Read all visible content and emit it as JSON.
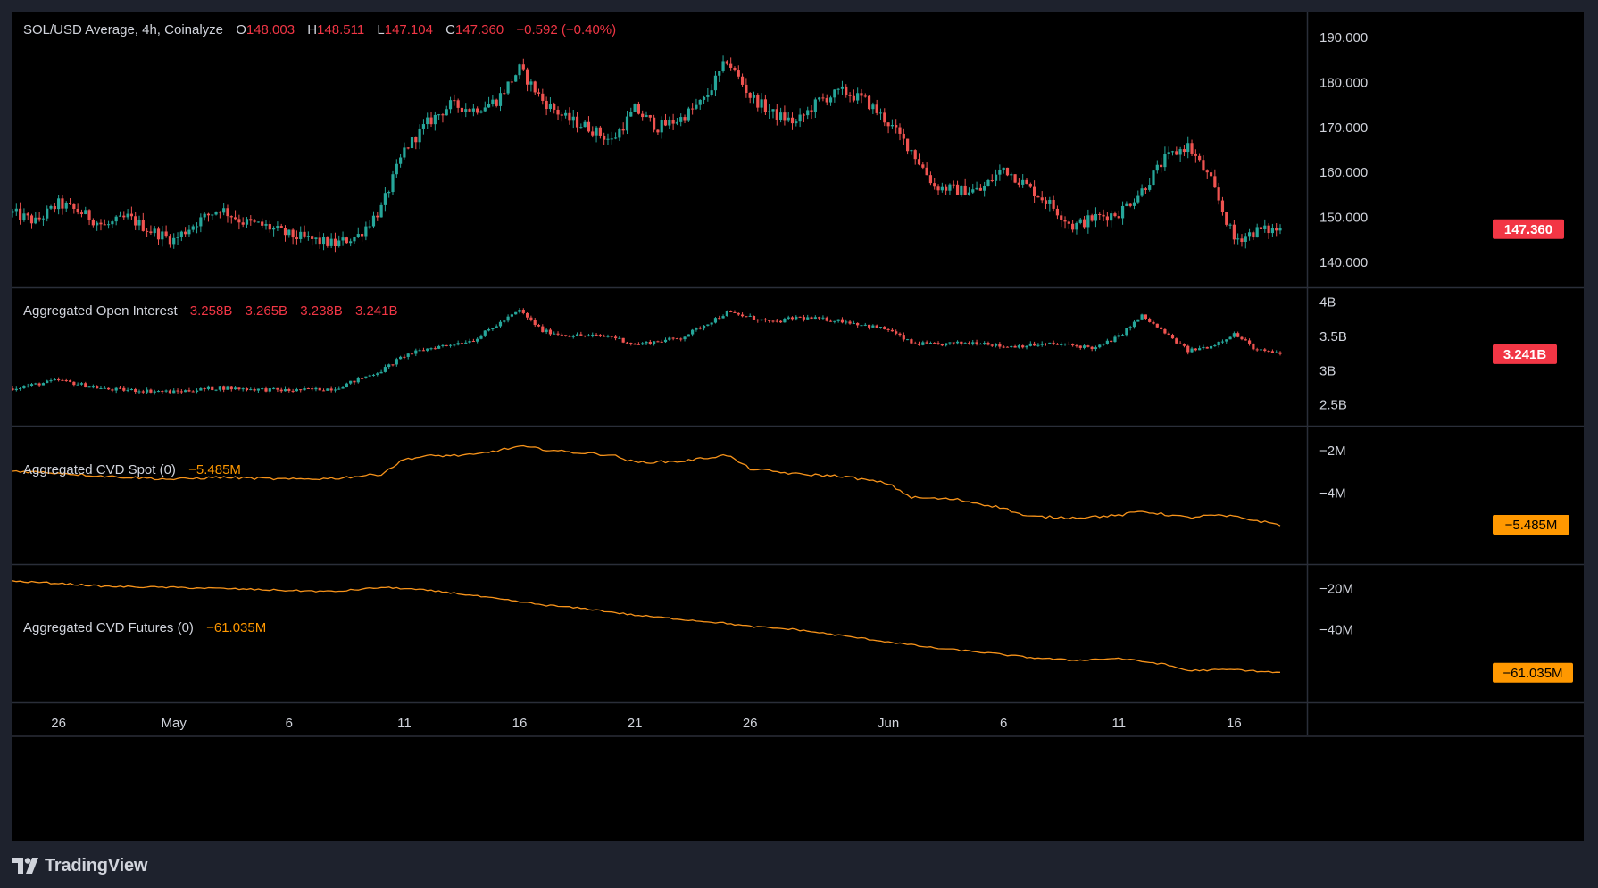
{
  "colors": {
    "up": "#26a69a",
    "down": "#ef5350",
    "cvd_line": "#f7931a",
    "label_red": "#f23645",
    "label_orange": "#ff9800",
    "separator": "#2a2e39",
    "axis_text": "#d1d4dc"
  },
  "brand": {
    "name": "TradingView",
    "icon": "tradingview-logo-icon"
  },
  "panes": {
    "price": {
      "title": "SOL/USD Average, 4h, Coinalyze",
      "o_label": "O",
      "o_value": "148.003",
      "h_label": "H",
      "h_value": "148.511",
      "l_label": "L",
      "l_value": "147.104",
      "c_label": "C",
      "c_value": "147.360",
      "change": "−0.592 (−0.40%)",
      "last_label": "147.360"
    },
    "oi": {
      "title": "Aggregated Open Interest",
      "v1": "3.258B",
      "v2": "3.265B",
      "v3": "3.238B",
      "v4": "3.241B",
      "last_label": "3.241B"
    },
    "cvd_spot": {
      "title": "Aggregated CVD Spot (0)",
      "value": "−5.485M",
      "last_label": "−5.485M"
    },
    "cvd_futures": {
      "title": "Aggregated CVD Futures (0)",
      "value": "−61.035M",
      "last_label": "−61.035M"
    }
  },
  "chart_data": [
    {
      "type": "candlestick",
      "title": "SOL/USD Average, 4h, Coinalyze",
      "ylim": [
        136,
        194
      ],
      "ytick_values": [
        140,
        150,
        160,
        170,
        180,
        190
      ],
      "ytick_labels": [
        "140.000",
        "150.000",
        "160.000",
        "170.000",
        "180.000",
        "190.000"
      ],
      "x_start": "2024-04-24",
      "x_end": "2024-06-18",
      "xtick_dates": [
        "2024-04-26",
        "2024-05-01",
        "2024-05-06",
        "2024-05-11",
        "2024-05-16",
        "2024-05-21",
        "2024-05-26",
        "2024-06-01",
        "2024-06-06",
        "2024-06-11",
        "2024-06-16"
      ],
      "xtick_labels": [
        "26",
        "May",
        "6",
        "11",
        "16",
        "21",
        "26",
        "Jun",
        "6",
        "11",
        "16"
      ],
      "close_series": [
        [
          "2024-04-24",
          151
        ],
        [
          "2024-04-25",
          149
        ],
        [
          "2024-04-26",
          153
        ],
        [
          "2024-04-27",
          151
        ],
        [
          "2024-04-28",
          148
        ],
        [
          "2024-04-29",
          150
        ],
        [
          "2024-04-30",
          147
        ],
        [
          "2024-05-01",
          145
        ],
        [
          "2024-05-02",
          149
        ],
        [
          "2024-05-03",
          152
        ],
        [
          "2024-05-04",
          149
        ],
        [
          "2024-05-05",
          148
        ],
        [
          "2024-05-06",
          146
        ],
        [
          "2024-05-07",
          145
        ],
        [
          "2024-05-08",
          144
        ],
        [
          "2024-05-09",
          146
        ],
        [
          "2024-05-10",
          152
        ],
        [
          "2024-05-11",
          165
        ],
        [
          "2024-05-12",
          171
        ],
        [
          "2024-05-13",
          175
        ],
        [
          "2024-05-14",
          174
        ],
        [
          "2024-05-15",
          176
        ],
        [
          "2024-05-16",
          183
        ],
        [
          "2024-05-17",
          176
        ],
        [
          "2024-05-18",
          172
        ],
        [
          "2024-05-19",
          170
        ],
        [
          "2024-05-20",
          167
        ],
        [
          "2024-05-21",
          174
        ],
        [
          "2024-05-22",
          170
        ],
        [
          "2024-05-23",
          172
        ],
        [
          "2024-05-24",
          176
        ],
        [
          "2024-05-25",
          185
        ],
        [
          "2024-05-26",
          177
        ],
        [
          "2024-05-27",
          173
        ],
        [
          "2024-05-28",
          171
        ],
        [
          "2024-05-29",
          176
        ],
        [
          "2024-05-30",
          178
        ],
        [
          "2024-05-31",
          176
        ],
        [
          "2024-06-01",
          171
        ],
        [
          "2024-06-02",
          165
        ],
        [
          "2024-06-03",
          157
        ],
        [
          "2024-06-04",
          156
        ],
        [
          "2024-06-05",
          156
        ],
        [
          "2024-06-06",
          161
        ],
        [
          "2024-06-07",
          157
        ],
        [
          "2024-06-08",
          153
        ],
        [
          "2024-06-09",
          148
        ],
        [
          "2024-06-10",
          150
        ],
        [
          "2024-06-11",
          151
        ],
        [
          "2024-06-12",
          156
        ],
        [
          "2024-06-13",
          163
        ],
        [
          "2024-06-14",
          166
        ],
        [
          "2024-06-15",
          158
        ],
        [
          "2024-06-16",
          145
        ],
        [
          "2024-06-17",
          147
        ],
        [
          "2024-06-18",
          147.36
        ]
      ]
    },
    {
      "type": "candlestick",
      "title": "Aggregated Open Interest",
      "unit": "B",
      "ylim": [
        2.3,
        4.1
      ],
      "ytick_values": [
        2.5,
        3,
        3.5,
        4
      ],
      "ytick_labels": [
        "2.5B",
        "3B",
        "3.5B",
        "4B"
      ],
      "close_series": [
        [
          "2024-04-24",
          2.74
        ],
        [
          "2024-04-26",
          2.86
        ],
        [
          "2024-04-28",
          2.73
        ],
        [
          "2024-05-01",
          2.69
        ],
        [
          "2024-05-03",
          2.75
        ],
        [
          "2024-05-06",
          2.71
        ],
        [
          "2024-05-08",
          2.74
        ],
        [
          "2024-05-10",
          3.0
        ],
        [
          "2024-05-11",
          3.22
        ],
        [
          "2024-05-12",
          3.32
        ],
        [
          "2024-05-14",
          3.45
        ],
        [
          "2024-05-16",
          3.88
        ],
        [
          "2024-05-17",
          3.58
        ],
        [
          "2024-05-18",
          3.52
        ],
        [
          "2024-05-20",
          3.5
        ],
        [
          "2024-05-21",
          3.38
        ],
        [
          "2024-05-23",
          3.48
        ],
        [
          "2024-05-25",
          3.85
        ],
        [
          "2024-05-26",
          3.78
        ],
        [
          "2024-05-27",
          3.7
        ],
        [
          "2024-05-28",
          3.78
        ],
        [
          "2024-05-30",
          3.73
        ],
        [
          "2024-06-01",
          3.6
        ],
        [
          "2024-06-02",
          3.4
        ],
        [
          "2024-06-03",
          3.38
        ],
        [
          "2024-06-05",
          3.42
        ],
        [
          "2024-06-06",
          3.35
        ],
        [
          "2024-06-08",
          3.39
        ],
        [
          "2024-06-09",
          3.37
        ],
        [
          "2024-06-10",
          3.33
        ],
        [
          "2024-06-11",
          3.5
        ],
        [
          "2024-06-12",
          3.8
        ],
        [
          "2024-06-13",
          3.55
        ],
        [
          "2024-06-14",
          3.29
        ],
        [
          "2024-06-15",
          3.36
        ],
        [
          "2024-06-16",
          3.54
        ],
        [
          "2024-06-17",
          3.3
        ],
        [
          "2024-06-18",
          3.241
        ]
      ]
    },
    {
      "type": "line",
      "title": "Aggregated CVD Spot (0)",
      "unit": "M",
      "ylim": [
        -7.0,
        -1.2
      ],
      "ytick_values": [
        -2,
        -4
      ],
      "ytick_labels": [
        "−2M",
        "−4M"
      ],
      "series": [
        [
          "2024-04-24",
          -2.95
        ],
        [
          "2024-04-26",
          -3.05
        ],
        [
          "2024-04-28",
          -3.2
        ],
        [
          "2024-05-01",
          -3.35
        ],
        [
          "2024-05-03",
          -3.25
        ],
        [
          "2024-05-06",
          -3.35
        ],
        [
          "2024-05-08",
          -3.3
        ],
        [
          "2024-05-10",
          -3.1
        ],
        [
          "2024-05-11",
          -2.4
        ],
        [
          "2024-05-12",
          -2.25
        ],
        [
          "2024-05-14",
          -2.2
        ],
        [
          "2024-05-16",
          -1.8
        ],
        [
          "2024-05-18",
          -2.05
        ],
        [
          "2024-05-20",
          -2.2
        ],
        [
          "2024-05-21",
          -2.55
        ],
        [
          "2024-05-23",
          -2.5
        ],
        [
          "2024-05-25",
          -2.2
        ],
        [
          "2024-05-26",
          -2.85
        ],
        [
          "2024-05-28",
          -3.1
        ],
        [
          "2024-05-30",
          -3.2
        ],
        [
          "2024-06-01",
          -3.55
        ],
        [
          "2024-06-02",
          -4.2
        ],
        [
          "2024-06-04",
          -4.3
        ],
        [
          "2024-06-06",
          -4.7
        ],
        [
          "2024-06-07",
          -5.1
        ],
        [
          "2024-06-09",
          -5.15
        ],
        [
          "2024-06-11",
          -5.05
        ],
        [
          "2024-06-12",
          -4.85
        ],
        [
          "2024-06-14",
          -5.15
        ],
        [
          "2024-06-15",
          -5.05
        ],
        [
          "2024-06-16",
          -5.1
        ],
        [
          "2024-06-17",
          -5.3
        ],
        [
          "2024-06-18",
          -5.485
        ]
      ]
    },
    {
      "type": "line",
      "title": "Aggregated CVD Futures (0)",
      "unit": "M",
      "ylim": [
        -72,
        -12
      ],
      "ytick_values": [
        -20,
        -40
      ],
      "ytick_labels": [
        "−20M",
        "−40M"
      ],
      "series": [
        [
          "2024-04-24",
          -16.5
        ],
        [
          "2024-04-26",
          -17.5
        ],
        [
          "2024-04-28",
          -19
        ],
        [
          "2024-05-01",
          -19.5
        ],
        [
          "2024-05-03",
          -20
        ],
        [
          "2024-05-06",
          -21
        ],
        [
          "2024-05-08",
          -21.5
        ],
        [
          "2024-05-10",
          -19.5
        ],
        [
          "2024-05-11",
          -20
        ],
        [
          "2024-05-13",
          -22
        ],
        [
          "2024-05-15",
          -25
        ],
        [
          "2024-05-17",
          -28
        ],
        [
          "2024-05-19",
          -30
        ],
        [
          "2024-05-21",
          -33
        ],
        [
          "2024-05-23",
          -35
        ],
        [
          "2024-05-25",
          -37
        ],
        [
          "2024-05-26",
          -38.5
        ],
        [
          "2024-05-28",
          -40
        ],
        [
          "2024-05-30",
          -43
        ],
        [
          "2024-06-01",
          -46
        ],
        [
          "2024-06-03",
          -49
        ],
        [
          "2024-06-05",
          -51
        ],
        [
          "2024-06-07",
          -53.5
        ],
        [
          "2024-06-09",
          -55
        ],
        [
          "2024-06-11",
          -54
        ],
        [
          "2024-06-13",
          -57
        ],
        [
          "2024-06-14",
          -60
        ],
        [
          "2024-06-16",
          -59.5
        ],
        [
          "2024-06-18",
          -61.035
        ]
      ]
    }
  ]
}
